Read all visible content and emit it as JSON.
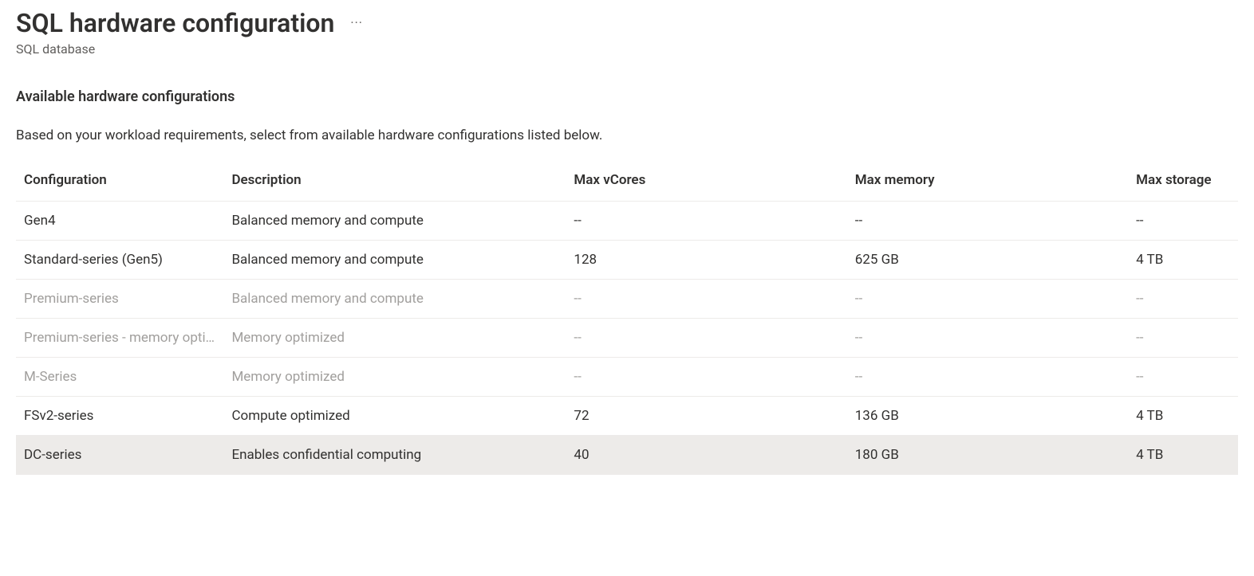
{
  "header": {
    "title": "SQL hardware configuration",
    "subtitle": "SQL database"
  },
  "section": {
    "title": "Available hardware configurations",
    "description": "Based on your workload requirements, select from available hardware configurations listed below."
  },
  "table": {
    "columns": {
      "configuration": "Configuration",
      "description": "Description",
      "max_vcores": "Max vCores",
      "max_memory": "Max memory",
      "max_storage": "Max storage"
    },
    "rows": [
      {
        "configuration": "Gen4",
        "description": "Balanced memory and compute",
        "max_vcores": "--",
        "max_memory": "--",
        "max_storage": "--",
        "disabled": false,
        "selected": false
      },
      {
        "configuration": "Standard-series (Gen5)",
        "description": "Balanced memory and compute",
        "max_vcores": "128",
        "max_memory": "625 GB",
        "max_storage": "4 TB",
        "disabled": false,
        "selected": false
      },
      {
        "configuration": "Premium-series",
        "description": "Balanced memory and compute",
        "max_vcores": "--",
        "max_memory": "--",
        "max_storage": "--",
        "disabled": true,
        "selected": false
      },
      {
        "configuration": "Premium-series - memory optimized",
        "description": "Memory optimized",
        "max_vcores": "--",
        "max_memory": "--",
        "max_storage": "--",
        "disabled": true,
        "selected": false
      },
      {
        "configuration": "M-Series",
        "description": "Memory optimized",
        "max_vcores": "--",
        "max_memory": "--",
        "max_storage": "--",
        "disabled": true,
        "selected": false
      },
      {
        "configuration": "FSv2-series",
        "description": "Compute optimized",
        "max_vcores": "72",
        "max_memory": "136 GB",
        "max_storage": "4 TB",
        "disabled": false,
        "selected": false
      },
      {
        "configuration": "DC-series",
        "description": "Enables confidential computing",
        "max_vcores": "40",
        "max_memory": "180 GB",
        "max_storage": "4 TB",
        "disabled": false,
        "selected": true
      }
    ]
  }
}
